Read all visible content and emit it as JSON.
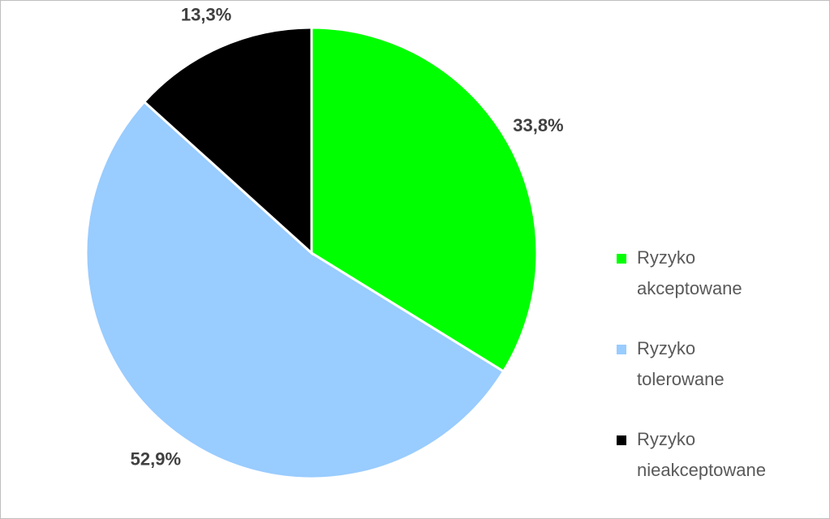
{
  "chart_data": {
    "type": "pie",
    "categories": [
      "Ryzyko akceptowane",
      "Ryzyko tolerowane",
      "Ryzyko nieakceptowane"
    ],
    "values": [
      33.8,
      52.9,
      13.3
    ],
    "value_labels": [
      "33,8%",
      "52,9%",
      "13,3%"
    ],
    "colors": [
      "#00ff00",
      "#99ccff",
      "#000000"
    ],
    "legend": "right"
  }
}
